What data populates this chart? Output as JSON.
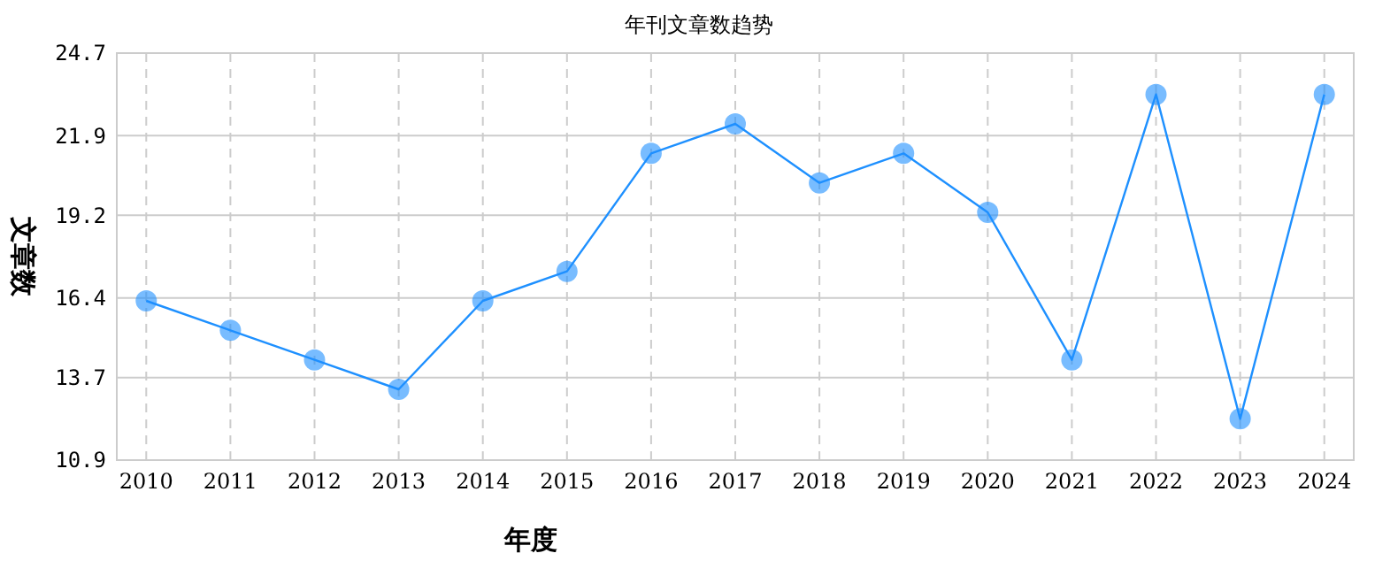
{
  "chart_data": {
    "type": "line",
    "title": "年刊文章数趋势",
    "xlabel": "年度",
    "ylabel": "文章数",
    "categories": [
      "2010",
      "2011",
      "2012",
      "2013",
      "2014",
      "2015",
      "2016",
      "2017",
      "2018",
      "2019",
      "2020",
      "2021",
      "2022",
      "2023",
      "2024"
    ],
    "series": [
      {
        "color": "#1e90ff",
        "values": [
          16.3,
          15.3,
          14.3,
          13.3,
          16.3,
          17.3,
          21.3,
          22.3,
          20.3,
          21.3,
          19.3,
          14.3,
          23.3,
          12.3,
          23.3
        ]
      }
    ],
    "ylim": [
      10.9,
      24.7
    ],
    "yticks": [
      10.9,
      13.7,
      16.4,
      19.2,
      21.9,
      24.7
    ],
    "grid": true,
    "marker": "circle",
    "line_style": "solid"
  }
}
